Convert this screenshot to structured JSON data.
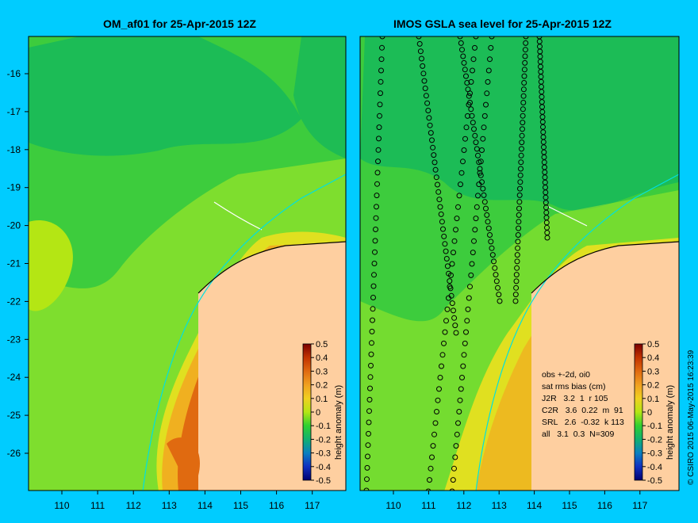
{
  "left_panel": {
    "title": "OM_af01 for 25-Apr-2015 12Z",
    "colorbar_label": "height anomaly (m)"
  },
  "right_panel": {
    "title": "IMOS GSLA sea level  for 25-Apr-2015 12Z",
    "colorbar_label": "height anomaly (m)",
    "stats": {
      "line1": "obs +-2d, oi0",
      "line2": "sat rms bias (cm)",
      "rows": [
        "J2R   3.2  1  r 105",
        "C2R   3.6  0.22  m  91",
        "SRL   2.6  -0.32  k 113",
        "all   3.1  0.3  N=309"
      ]
    }
  },
  "credit": "© CSIRO 2015   06-May-2015 16:23:39",
  "axes": {
    "lat_ticks": [
      "-16",
      "-17",
      "-18",
      "-19",
      "-20",
      "-21",
      "-22",
      "-23",
      "-24",
      "-25",
      "-26"
    ],
    "lon_ticks": [
      "110",
      "111",
      "112",
      "113",
      "114",
      "115",
      "116",
      "117"
    ]
  },
  "colorbar": {
    "ticks": [
      "0.5",
      "0.4",
      "0.3",
      "0.2",
      "0.1",
      "0",
      "-0.1",
      "-0.2",
      "-0.3",
      "-0.4",
      "-0.5"
    ],
    "colors": [
      "#7a0000",
      "#c23300",
      "#e06a10",
      "#f0a020",
      "#f0d020",
      "#b4e614",
      "#30d030",
      "#10b070",
      "#0a80c0",
      "#1030c0",
      "#000070"
    ]
  },
  "colors": {
    "background": "#00ccff",
    "land": "#fecfa0",
    "ocean_green": "#3dcc3d",
    "ocean_dark": "#16b85a",
    "coastline_current": "#00e0e0"
  }
}
